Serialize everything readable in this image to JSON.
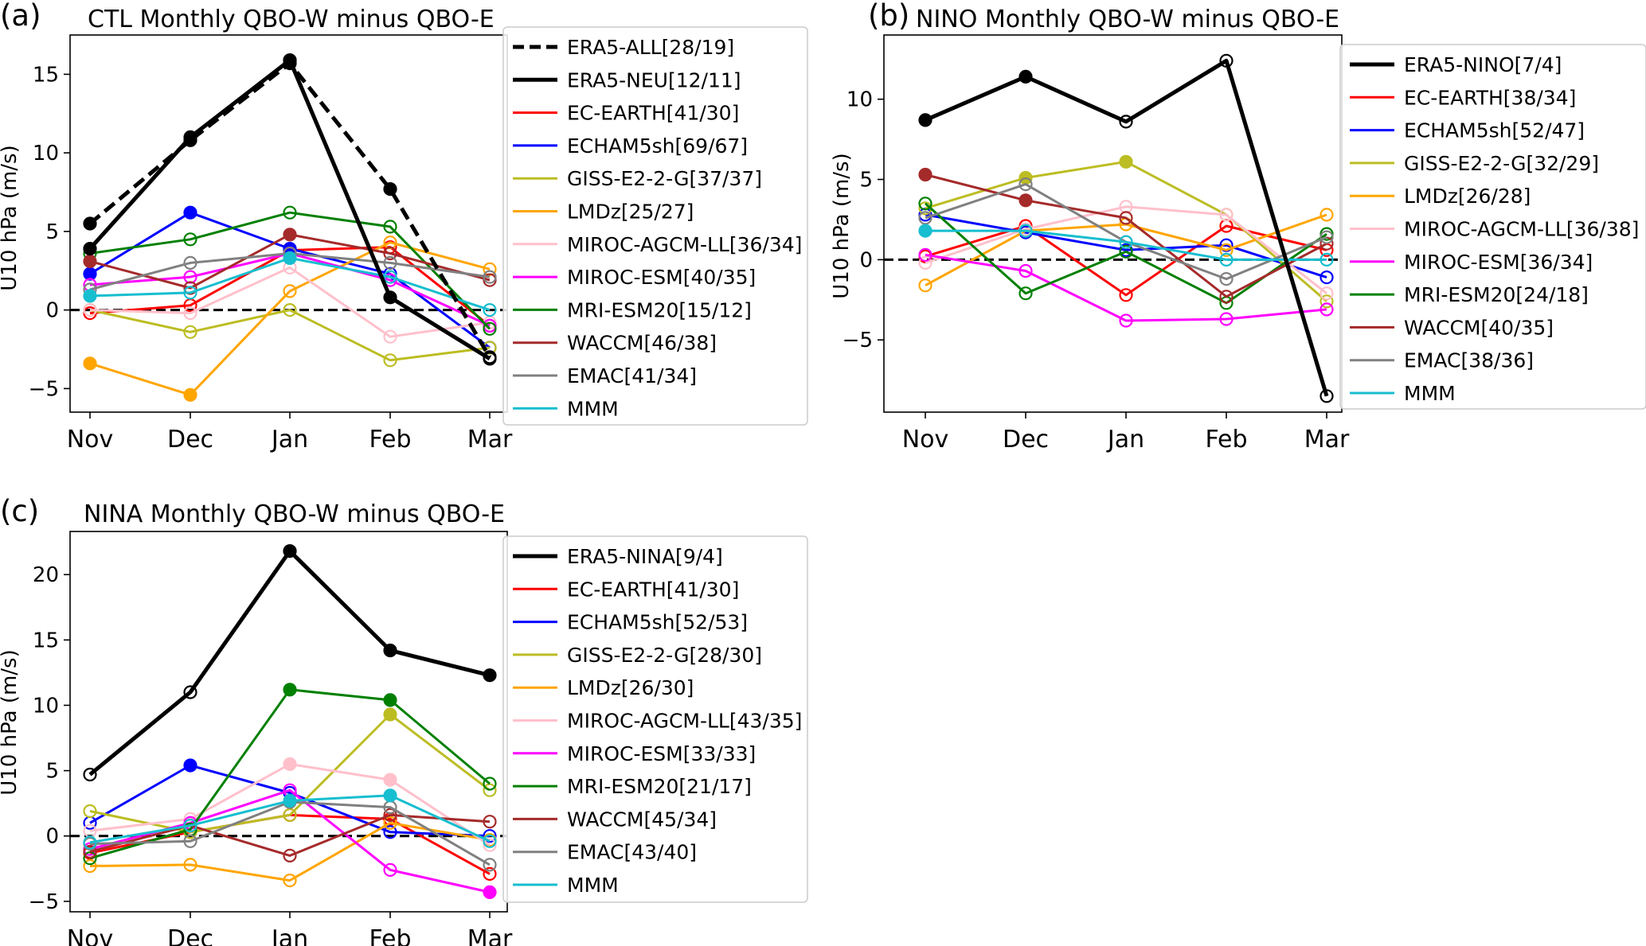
{
  "palette": {
    "ERA5": "#000000",
    "EC-EARTH": "#ff0000",
    "ECHAM5sh": "#0000ff",
    "GISS-E2-2-G": "#bcbd22",
    "LMDz": "#ffa500",
    "MIROC-AGCM-LL": "#ffc0cb",
    "MIROC-ESM": "#ff00ff",
    "MRI-ESM20": "#008000",
    "WACCM": "#a52a2a",
    "EMAC": "#808080",
    "MMM": "#17becf"
  },
  "chart_data": [
    {
      "type": "line",
      "panel_label": "(a)",
      "title": "CTL Monthly QBO-W minus QBO-E",
      "ylabel": "U10 hPa (m/s)",
      "xlabel": "",
      "categories": [
        "Nov",
        "Dec",
        "Jan",
        "Feb",
        "Mar"
      ],
      "ylim": [
        -6.5,
        17.5
      ],
      "yticks": [
        -5,
        0,
        5,
        10,
        15
      ],
      "zero_line": true,
      "legend_position": "right",
      "series": [
        {
          "name": "ERA5-ALL[28/19]",
          "color_key": "ERA5",
          "dashed": true,
          "bold": true,
          "values": [
            5.5,
            10.8,
            15.7,
            7.7,
            -3.0
          ],
          "filled": [
            true,
            true,
            true,
            true,
            false
          ]
        },
        {
          "name": "ERA5-NEU[12/11]",
          "color_key": "ERA5",
          "bold": true,
          "values": [
            3.9,
            11.0,
            15.9,
            0.8,
            -3.1
          ],
          "filled": [
            true,
            true,
            true,
            true,
            false
          ]
        },
        {
          "name": "EC-EARTH[41/30]",
          "color_key": "EC-EARTH",
          "values": [
            -0.2,
            0.3,
            3.8,
            4.0,
            -1.0
          ],
          "filled": [
            false,
            false,
            false,
            false,
            false
          ]
        },
        {
          "name": "ECHAM5sh[69/67]",
          "color_key": "ECHAM5sh",
          "values": [
            2.3,
            6.2,
            3.9,
            2.3,
            -2.4
          ],
          "filled": [
            true,
            true,
            true,
            false,
            false
          ]
        },
        {
          "name": "GISS-E2-2-G[37/37]",
          "color_key": "GISS-E2-2-G",
          "values": [
            0.0,
            -1.4,
            0.0,
            -3.2,
            -2.4
          ],
          "filled": [
            false,
            false,
            false,
            false,
            false
          ]
        },
        {
          "name": "LMDz[25/27]",
          "color_key": "LMDz",
          "values": [
            -3.4,
            -5.4,
            1.2,
            4.3,
            2.6
          ],
          "filled": [
            true,
            true,
            false,
            false,
            false
          ]
        },
        {
          "name": "MIROC-AGCM-LL[36/34]",
          "color_key": "MIROC-AGCM-LL",
          "values": [
            0.0,
            -0.2,
            2.7,
            -1.7,
            -0.8
          ],
          "filled": [
            false,
            false,
            false,
            false,
            false
          ]
        },
        {
          "name": "MIROC-ESM[40/35]",
          "color_key": "MIROC-ESM",
          "values": [
            1.6,
            2.1,
            3.6,
            1.9,
            -1.0
          ],
          "filled": [
            false,
            false,
            false,
            false,
            false
          ]
        },
        {
          "name": "MRI-ESM20[15/12]",
          "color_key": "MRI-ESM20",
          "values": [
            3.6,
            4.5,
            6.2,
            5.3,
            -1.2
          ],
          "filled": [
            false,
            false,
            false,
            false,
            false
          ]
        },
        {
          "name": "WACCM[46/38]",
          "color_key": "WACCM",
          "values": [
            3.1,
            1.4,
            4.8,
            3.6,
            1.9
          ],
          "filled": [
            true,
            false,
            true,
            false,
            false
          ]
        },
        {
          "name": "EMAC[41/34]",
          "color_key": "EMAC",
          "values": [
            1.3,
            3.0,
            3.6,
            3.0,
            2.1
          ],
          "filled": [
            false,
            false,
            false,
            false,
            false
          ]
        },
        {
          "name": "MMM",
          "color_key": "MMM",
          "values": [
            0.9,
            1.1,
            3.3,
            2.1,
            0.0
          ],
          "filled": [
            true,
            false,
            true,
            false,
            false
          ]
        }
      ]
    },
    {
      "type": "line",
      "panel_label": "(b)",
      "title": "NINO Monthly QBO-W minus QBO-E",
      "ylabel": "U10 hPa (m/s)",
      "xlabel": "",
      "categories": [
        "Nov",
        "Dec",
        "Jan",
        "Feb",
        "Mar"
      ],
      "ylim": [
        -9.5,
        14.0
      ],
      "yticks": [
        -5,
        0,
        5,
        10
      ],
      "zero_line": true,
      "legend_position": "right",
      "series": [
        {
          "name": "ERA5-NINO[7/4]",
          "color_key": "ERA5",
          "bold": true,
          "values": [
            8.7,
            11.4,
            8.6,
            12.4,
            -8.5
          ],
          "filled": [
            true,
            true,
            false,
            false,
            false
          ]
        },
        {
          "name": "EC-EARTH[38/34]",
          "color_key": "EC-EARTH",
          "values": [
            0.2,
            2.1,
            -2.2,
            2.1,
            0.6
          ],
          "filled": [
            false,
            false,
            false,
            false,
            false
          ]
        },
        {
          "name": "ECHAM5sh[52/47]",
          "color_key": "ECHAM5sh",
          "values": [
            2.8,
            1.7,
            0.6,
            0.9,
            -1.1
          ],
          "filled": [
            false,
            false,
            false,
            false,
            false
          ]
        },
        {
          "name": "GISS-E2-2-G[32/29]",
          "color_key": "GISS-E2-2-G",
          "values": [
            3.2,
            5.1,
            6.1,
            2.8,
            -2.6
          ],
          "filled": [
            false,
            true,
            true,
            false,
            false
          ]
        },
        {
          "name": "LMDz[26/28]",
          "color_key": "LMDz",
          "values": [
            -1.6,
            1.8,
            2.2,
            0.6,
            2.8
          ],
          "filled": [
            false,
            false,
            false,
            false,
            false
          ]
        },
        {
          "name": "MIROC-AGCM-LL[36/38]",
          "color_key": "MIROC-AGCM-LL",
          "values": [
            -0.2,
            1.9,
            3.3,
            2.8,
            -2.1
          ],
          "filled": [
            false,
            false,
            false,
            false,
            false
          ]
        },
        {
          "name": "MIROC-ESM[36/34]",
          "color_key": "MIROC-ESM",
          "values": [
            0.3,
            -0.7,
            -3.8,
            -3.7,
            -3.1
          ],
          "filled": [
            false,
            false,
            false,
            false,
            false
          ]
        },
        {
          "name": "MRI-ESM20[24/18]",
          "color_key": "MRI-ESM20",
          "values": [
            3.5,
            -2.1,
            0.5,
            -2.7,
            1.6
          ],
          "filled": [
            false,
            false,
            false,
            false,
            false
          ]
        },
        {
          "name": "WACCM[40/35]",
          "color_key": "WACCM",
          "values": [
            5.3,
            3.7,
            2.6,
            -2.3,
            1.0
          ],
          "filled": [
            true,
            true,
            false,
            false,
            false
          ]
        },
        {
          "name": "EMAC[38/36]",
          "color_key": "EMAC",
          "values": [
            2.6,
            4.7,
            1.1,
            -1.2,
            1.4
          ],
          "filled": [
            false,
            false,
            false,
            false,
            false
          ]
        },
        {
          "name": "MMM",
          "color_key": "MMM",
          "values": [
            1.8,
            1.8,
            1.1,
            0.0,
            0.0
          ],
          "filled": [
            true,
            false,
            false,
            false,
            false
          ]
        }
      ]
    },
    {
      "type": "line",
      "panel_label": "(c)",
      "title": "NINA Monthly QBO-W minus QBO-E",
      "ylabel": "U10 hPa (m/s)",
      "xlabel": "",
      "categories": [
        "Nov",
        "Dec",
        "Jan",
        "Feb",
        "Mar"
      ],
      "ylim": [
        -5.8,
        23.3
      ],
      "yticks": [
        -5,
        0,
        5,
        10,
        15,
        20
      ],
      "zero_line": true,
      "legend_position": "right",
      "series": [
        {
          "name": "ERA5-NINA[9/4]",
          "color_key": "ERA5",
          "bold": true,
          "values": [
            4.7,
            11.0,
            21.8,
            14.2,
            12.3
          ],
          "filled": [
            false,
            false,
            true,
            true,
            true
          ]
        },
        {
          "name": "EC-EARTH[41/30]",
          "color_key": "EC-EARTH",
          "values": [
            -1.3,
            0.3,
            1.6,
            1.3,
            -2.9
          ],
          "filled": [
            false,
            false,
            false,
            false,
            false
          ]
        },
        {
          "name": "ECHAM5sh[52/53]",
          "color_key": "ECHAM5sh",
          "values": [
            1.0,
            5.4,
            3.3,
            0.3,
            0.0
          ],
          "filled": [
            false,
            true,
            false,
            false,
            false
          ]
        },
        {
          "name": "GISS-E2-2-G[28/30]",
          "color_key": "GISS-E2-2-G",
          "values": [
            1.9,
            0.3,
            1.6,
            9.3,
            3.5
          ],
          "filled": [
            false,
            false,
            false,
            true,
            false
          ]
        },
        {
          "name": "LMDz[26/30]",
          "color_key": "LMDz",
          "values": [
            -2.3,
            -2.2,
            -3.4,
            1.0,
            -0.3
          ],
          "filled": [
            false,
            false,
            false,
            false,
            false
          ]
        },
        {
          "name": "MIROC-AGCM-LL[43/35]",
          "color_key": "MIROC-AGCM-LL",
          "values": [
            0.4,
            1.3,
            5.5,
            4.3,
            -0.7
          ],
          "filled": [
            false,
            false,
            true,
            true,
            false
          ]
        },
        {
          "name": "MIROC-ESM[33/33]",
          "color_key": "MIROC-ESM",
          "values": [
            -1.0,
            1.0,
            3.5,
            -2.6,
            -4.3
          ],
          "filled": [
            false,
            false,
            false,
            false,
            true
          ]
        },
        {
          "name": "MRI-ESM20[21/17]",
          "color_key": "MRI-ESM20",
          "values": [
            -1.7,
            0.5,
            11.2,
            10.4,
            4.0
          ],
          "filled": [
            false,
            false,
            true,
            true,
            false
          ]
        },
        {
          "name": "WACCM[45/34]",
          "color_key": "WACCM",
          "values": [
            -1.2,
            0.8,
            -1.5,
            1.6,
            1.1
          ],
          "filled": [
            false,
            false,
            false,
            false,
            false
          ]
        },
        {
          "name": "EMAC[43/40]",
          "color_key": "EMAC",
          "values": [
            -0.6,
            -0.4,
            2.6,
            2.2,
            -2.2
          ],
          "filled": [
            false,
            false,
            false,
            false,
            false
          ]
        },
        {
          "name": "MMM",
          "color_key": "MMM",
          "values": [
            -0.5,
            0.8,
            2.7,
            3.1,
            -0.4
          ],
          "filled": [
            false,
            false,
            true,
            true,
            false
          ]
        }
      ]
    }
  ]
}
